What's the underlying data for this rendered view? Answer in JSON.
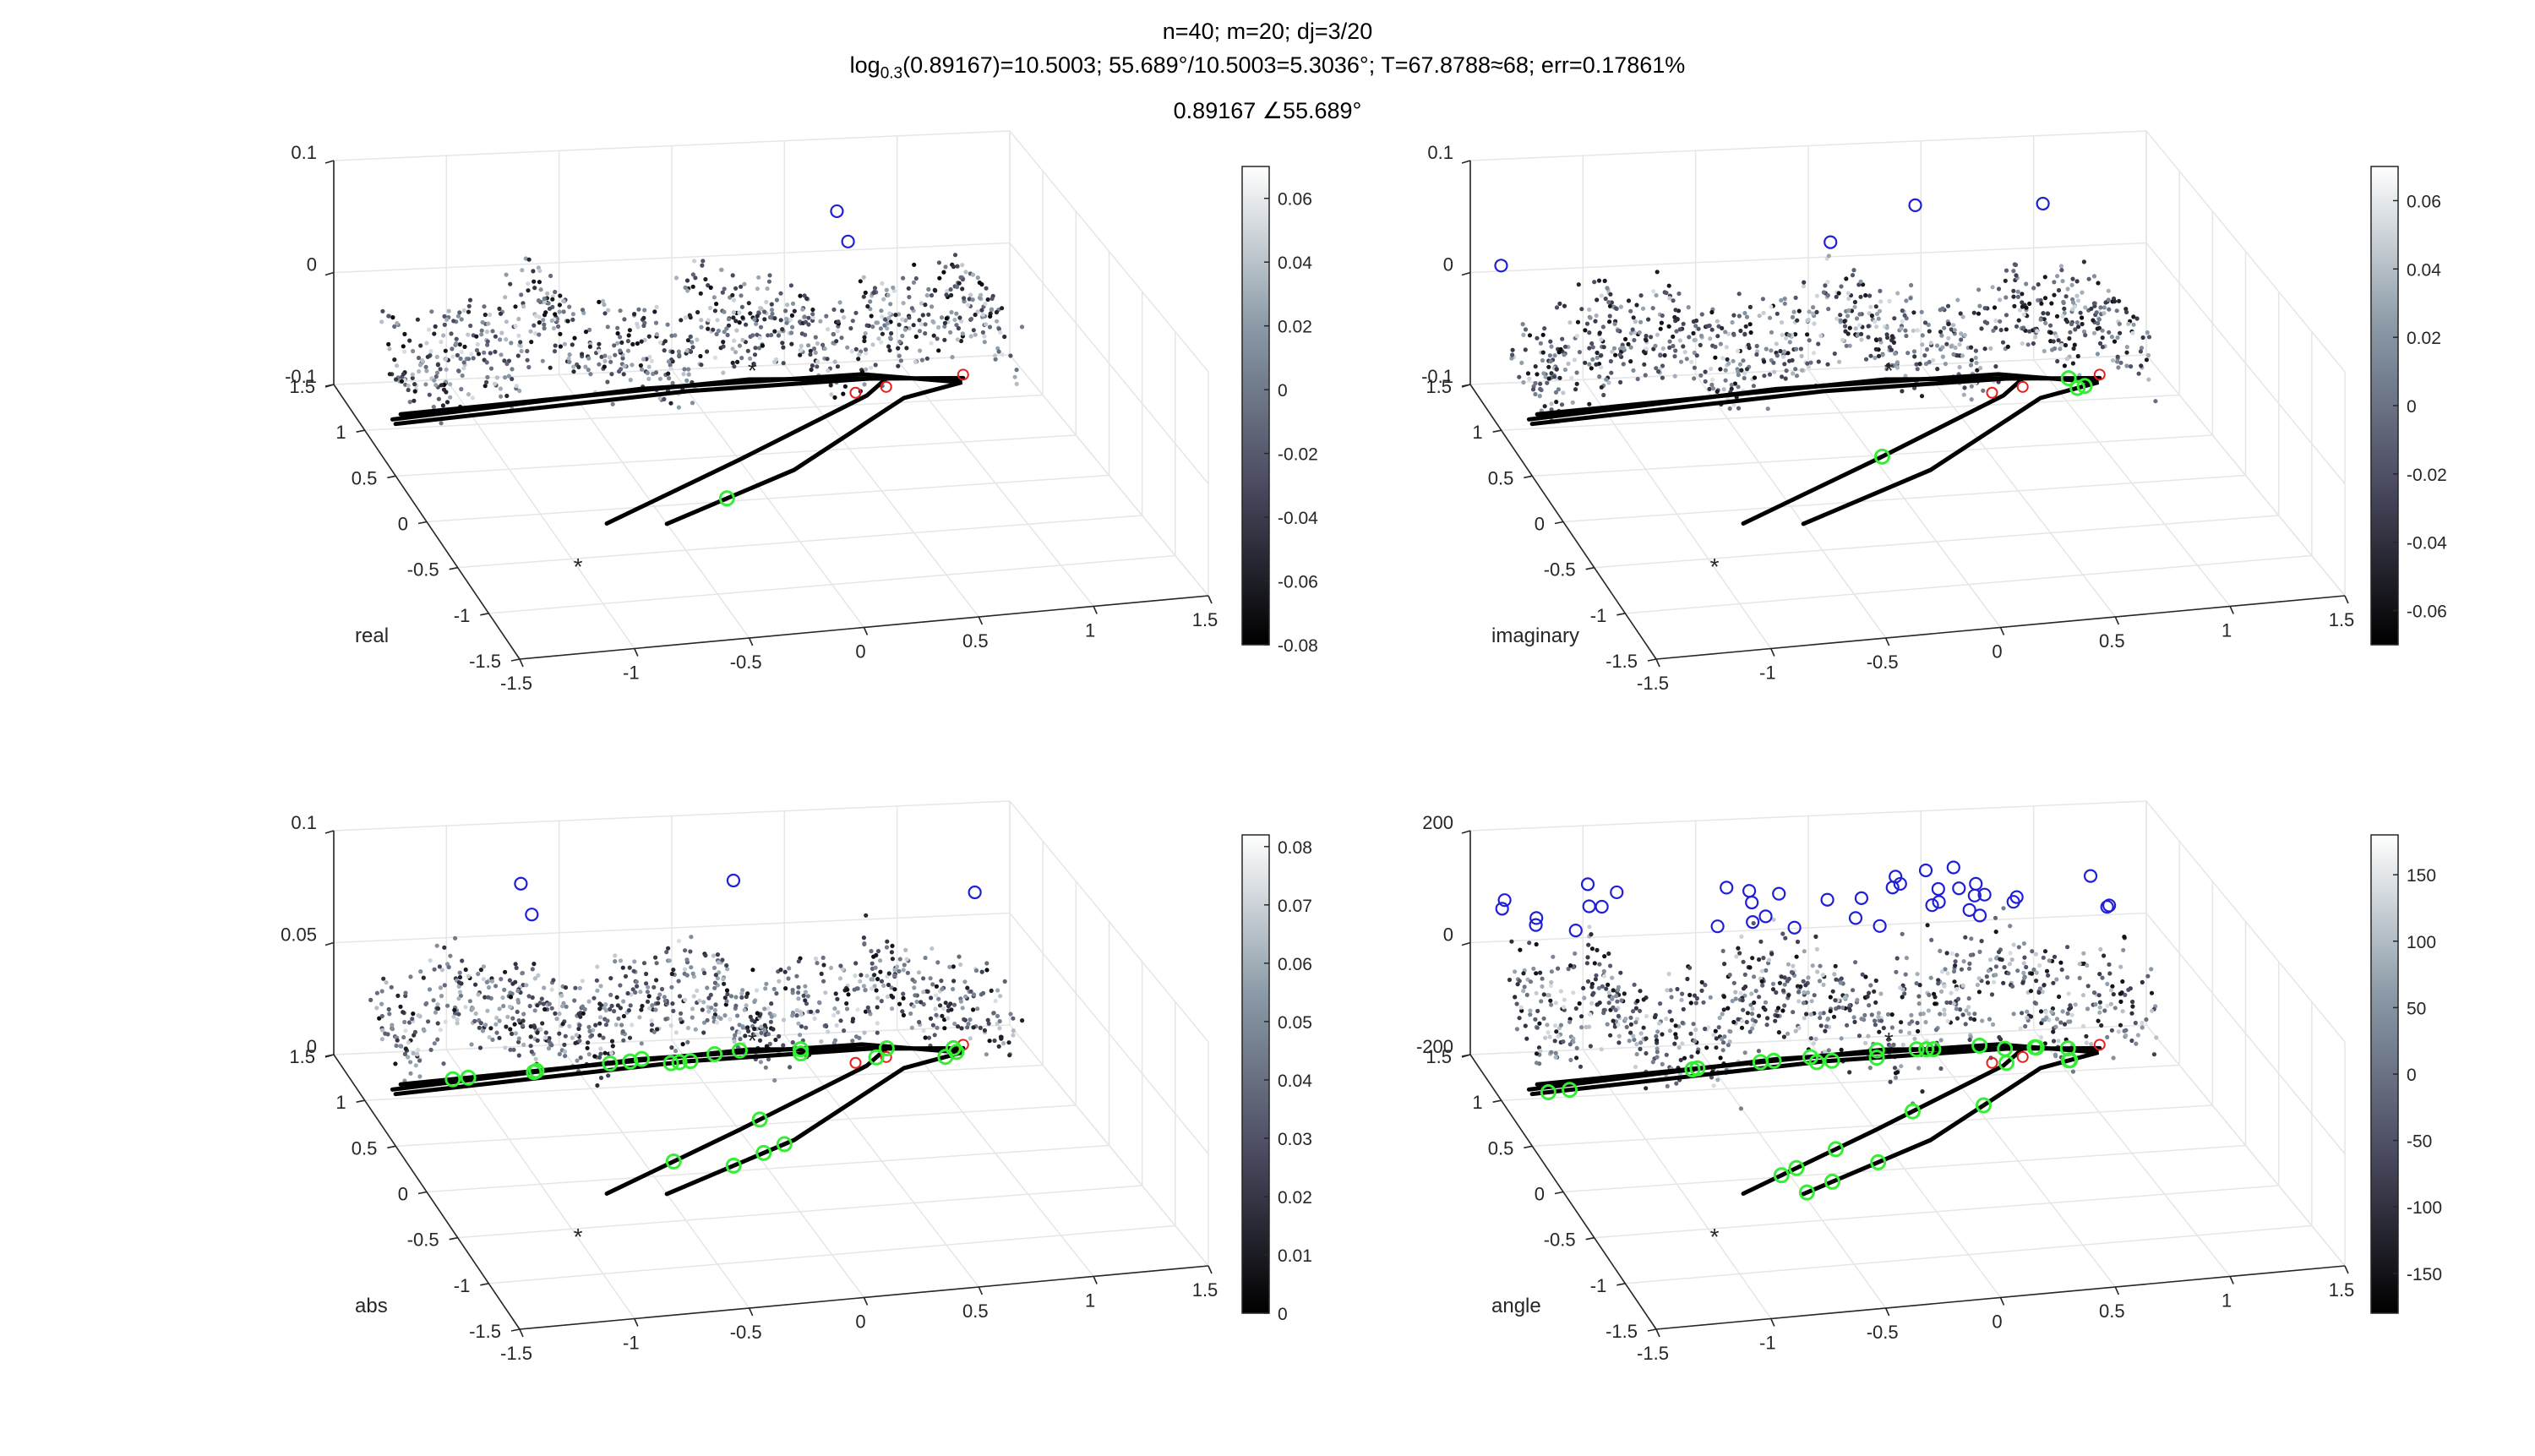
{
  "figure": {
    "title_line1": "n=40; m=20; dj=3/20",
    "title_line2": {
      "pre": "log",
      "sub": "0.3",
      "post": "(0.89167)=10.5003; 55.689°/10.5003=5.3036°; T=67.8788≈68; err=0.17861%"
    },
    "title_line3": "0.89167 ∠55.689°"
  },
  "colors": {
    "curve": "#000000",
    "green_marker": "#33ee33",
    "blue_marker": "#1f1fd6",
    "red_marker": "#e62020",
    "grid": "#e6e6e6",
    "axis": "#262626",
    "colormap": [
      "#000000",
      "#4a4a60",
      "#8a9aa6",
      "#ffffff"
    ]
  },
  "chart_data": [
    {
      "type": "scatter",
      "subtype": "3d",
      "zlabel": "real",
      "xlim": [
        -1.5,
        1.5
      ],
      "ylim": [
        -1.5,
        1.5
      ],
      "xticks": [
        "-1.5",
        "-1",
        "-0.5",
        "0",
        "0.5",
        "1",
        "1.5"
      ],
      "yticks": [
        "-1.5",
        "-1",
        "-0.5",
        "0",
        "0.5",
        "1",
        "1.5"
      ],
      "zticks": [
        "-0.1",
        "0",
        "0.1"
      ],
      "zlim": [
        -0.1,
        0.1
      ],
      "colorbar_ticks": [
        "-0.08",
        "-0.06",
        "-0.04",
        "-0.02",
        "0",
        "0.02",
        "0.04",
        "0.06"
      ],
      "colorbar_range": [
        -0.08,
        0.07
      ],
      "grid": true,
      "markers": {
        "green": 1,
        "blue": 2
      }
    },
    {
      "type": "scatter",
      "subtype": "3d",
      "zlabel": "imaginary",
      "xlim": [
        -1.5,
        1.5
      ],
      "ylim": [
        -1.5,
        1.5
      ],
      "xticks": [
        "-1.5",
        "-1",
        "-0.5",
        "0",
        "0.5",
        "1",
        "1.5"
      ],
      "yticks": [
        "-1.5",
        "-1",
        "-0.5",
        "0",
        "0.5",
        "1",
        "1.5"
      ],
      "zticks": [
        "-0.1",
        "0",
        "0.1"
      ],
      "zlim": [
        -0.1,
        0.1
      ],
      "colorbar_ticks": [
        "-0.06",
        "-0.04",
        "-0.02",
        "0",
        "0.02",
        "0.04",
        "0.06"
      ],
      "colorbar_range": [
        -0.07,
        0.07
      ],
      "grid": true,
      "markers": {
        "green": 4,
        "blue": 4
      }
    },
    {
      "type": "scatter",
      "subtype": "3d",
      "zlabel": "abs",
      "xlim": [
        -1.5,
        1.5
      ],
      "ylim": [
        -1.5,
        1.5
      ],
      "xticks": [
        "-1.5",
        "-1",
        "-0.5",
        "0",
        "0.5",
        "1",
        "1.5"
      ],
      "yticks": [
        "-1.5",
        "-1",
        "-0.5",
        "0",
        "0.5",
        "1",
        "1.5"
      ],
      "zticks": [
        "0",
        "0.05",
        "0.1"
      ],
      "zlim": [
        0,
        0.1
      ],
      "colorbar_ticks": [
        "0",
        "0.01",
        "0.02",
        "0.03",
        "0.04",
        "0.05",
        "0.06",
        "0.07",
        "0.08"
      ],
      "colorbar_range": [
        0,
        0.082
      ],
      "grid": true,
      "markers": {
        "green": 24,
        "blue": 4
      }
    },
    {
      "type": "scatter",
      "subtype": "3d",
      "zlabel": "angle",
      "xlim": [
        -1.5,
        1.5
      ],
      "ylim": [
        -1.5,
        1.5
      ],
      "xticks": [
        "-1.5",
        "-1",
        "-0.5",
        "0",
        "0.5",
        "1",
        "1.5"
      ],
      "yticks": [
        "-1.5",
        "-1",
        "-0.5",
        "0",
        "0.5",
        "1",
        "1.5"
      ],
      "zticks": [
        "-200",
        "0",
        "200"
      ],
      "zlim": [
        -200,
        200
      ],
      "colorbar_ticks": [
        "-150",
        "-100",
        "-50",
        "0",
        "50",
        "100",
        "150"
      ],
      "colorbar_range": [
        -180,
        180
      ],
      "grid": true,
      "markers": {
        "green": 30,
        "blue": 40
      }
    }
  ]
}
